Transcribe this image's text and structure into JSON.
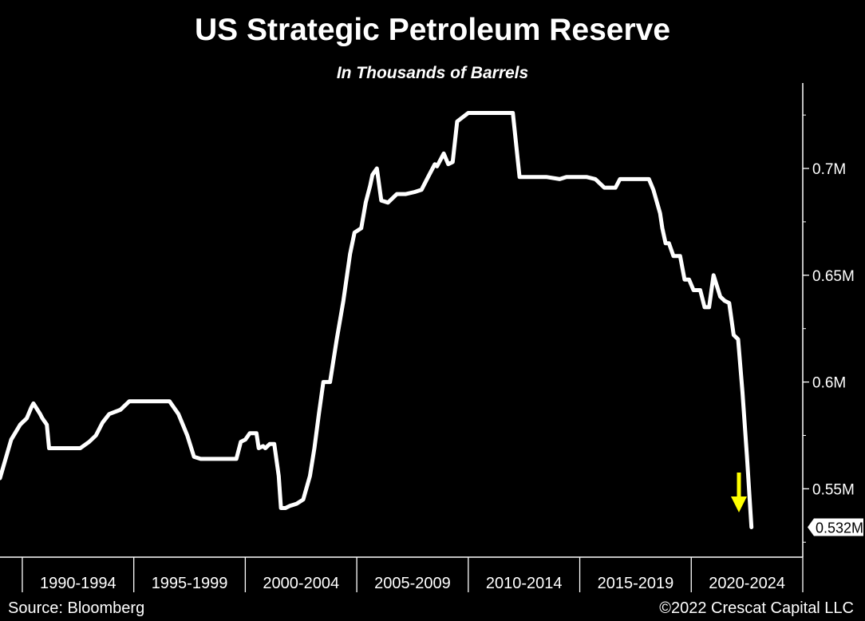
{
  "chart_data": {
    "type": "line",
    "title": "US Strategic Petroleum Reserve",
    "subtitle": "In Thousands of Barrels",
    "xlabel": "",
    "ylabel": "",
    "x_categories": [
      "1990-1994",
      "1995-1999",
      "2000-2004",
      "2005-2009",
      "2010-2014",
      "2015-2019",
      "2020-2024"
    ],
    "y_ticks": [
      {
        "value": 0.55,
        "label": "0.55M"
      },
      {
        "value": 0.6,
        "label": "0.6M"
      },
      {
        "value": 0.65,
        "label": "0.65M"
      },
      {
        "value": 0.7,
        "label": "0.7M"
      }
    ],
    "ylim": [
      0.518,
      0.74
    ],
    "xlim": [
      1989.0,
      2025.0
    ],
    "grid": false,
    "last_value_label": "0.532M",
    "line_color": "#ffffff",
    "arrow_color": "#ffff00",
    "series": [
      {
        "x": [
          1989.0,
          1989.5,
          1989.9,
          1990.2,
          1990.4,
          1990.5,
          1990.8,
          1990.9,
          1991.1,
          1991.2,
          1991.3,
          1992.0,
          1992.6,
          1993.0,
          1993.3,
          1993.6,
          1993.9,
          1994.4,
          1994.8,
          1995.2,
          1995.5,
          1996.0,
          1996.6,
          1997.0,
          1997.4,
          1997.7,
          1998.0,
          1999.0,
          1999.6,
          1999.8,
          2000.0,
          2000.2,
          2000.5,
          2000.6,
          2000.8,
          2000.9,
          2001.1,
          2001.3,
          2001.5,
          2001.6,
          2001.8,
          2002.0,
          2002.3,
          2002.6,
          2002.9,
          2003.1,
          2003.3,
          2003.5,
          2003.8,
          2004.1,
          2004.4,
          2004.7,
          2004.9,
          2005.2,
          2005.4,
          2005.6,
          2005.7,
          2005.9,
          2006.1,
          2006.4,
          2006.8,
          2007.2,
          2007.6,
          2007.9,
          2008.2,
          2008.5,
          2008.6,
          2008.9,
          2009.1,
          2009.3,
          2009.5,
          2010.0,
          2010.6,
          2010.7,
          2011.0,
          2011.5,
          2012.0,
          2012.3,
          2013.0,
          2013.5,
          2014.1,
          2014.4,
          2014.9,
          2015.3,
          2015.7,
          2016.1,
          2016.4,
          2016.6,
          2016.8,
          2017.1,
          2017.3,
          2017.6,
          2017.9,
          2018.1,
          2018.3,
          2018.6,
          2018.7,
          2018.85,
          2019.0,
          2019.2,
          2019.5,
          2019.7,
          2019.9,
          2020.1,
          2020.4,
          2020.6,
          2020.8,
          2021.0,
          2021.3,
          2021.5,
          2021.7,
          2021.9,
          2022.1,
          2022.3,
          2022.5,
          2022.7
        ],
        "y": [
          0.555,
          0.573,
          0.58,
          0.583,
          0.588,
          0.59,
          0.585,
          0.583,
          0.58,
          0.569,
          0.569,
          0.569,
          0.569,
          0.572,
          0.575,
          0.581,
          0.585,
          0.587,
          0.591,
          0.591,
          0.591,
          0.591,
          0.591,
          0.585,
          0.575,
          0.565,
          0.564,
          0.564,
          0.564,
          0.572,
          0.573,
          0.576,
          0.576,
          0.569,
          0.57,
          0.569,
          0.571,
          0.571,
          0.556,
          0.541,
          0.541,
          0.542,
          0.543,
          0.545,
          0.556,
          0.569,
          0.585,
          0.6,
          0.6,
          0.62,
          0.638,
          0.66,
          0.67,
          0.672,
          0.684,
          0.692,
          0.697,
          0.7,
          0.685,
          0.684,
          0.688,
          0.688,
          0.689,
          0.69,
          0.696,
          0.702,
          0.701,
          0.707,
          0.702,
          0.703,
          0.722,
          0.726,
          0.726,
          0.726,
          0.726,
          0.726,
          0.726,
          0.696,
          0.696,
          0.696,
          0.695,
          0.696,
          0.696,
          0.696,
          0.695,
          0.691,
          0.691,
          0.691,
          0.695,
          0.695,
          0.695,
          0.695,
          0.695,
          0.695,
          0.69,
          0.679,
          0.672,
          0.665,
          0.665,
          0.659,
          0.659,
          0.648,
          0.648,
          0.643,
          0.643,
          0.635,
          0.635,
          0.65,
          0.64,
          0.638,
          0.637,
          0.622,
          0.62,
          0.595,
          0.565,
          0.532
        ]
      }
    ]
  },
  "footer": {
    "source": "Source: Bloomberg",
    "copyright": "©2022 Crescat Capital LLC"
  }
}
